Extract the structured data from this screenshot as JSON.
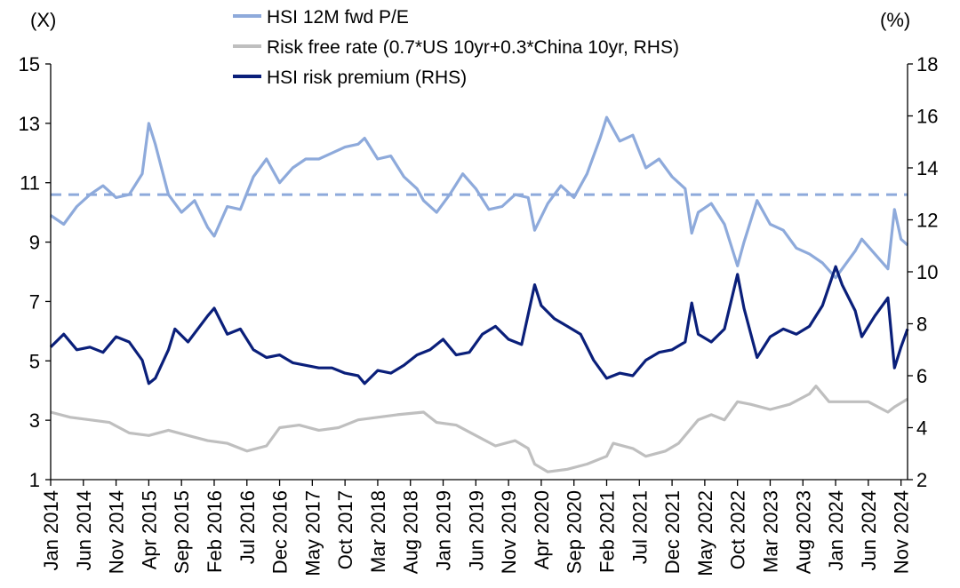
{
  "chart_data": {
    "type": "line",
    "left_unit": "(X)",
    "right_unit": "(%)",
    "left_axis": {
      "min": 1,
      "max": 15,
      "ticks": [
        1,
        3,
        5,
        7,
        9,
        11,
        13,
        15
      ]
    },
    "right_axis": {
      "min": 2,
      "max": 18,
      "ticks": [
        2,
        4,
        6,
        8,
        10,
        12,
        14,
        16,
        18
      ]
    },
    "x_range": [
      "Jan 2014",
      "Dec 2024"
    ],
    "x_tick_labels": [
      "Jan 2014",
      "Jun 2014",
      "Nov 2014",
      "Apr 2015",
      "Sep 2015",
      "Feb 2016",
      "Jul 2016",
      "Dec 2016",
      "May 2017",
      "Oct 2017",
      "Mar 2018",
      "Aug 2018",
      "Jan 2019",
      "Jun 2019",
      "Nov 2019",
      "Apr 2020",
      "Sep 2020",
      "Feb 2021",
      "Jul 2021",
      "Dec 2021",
      "May 2022",
      "Oct 2022",
      "Mar 2023",
      "Aug 2023",
      "Jan 2024",
      "Jun 2024",
      "Nov 2024"
    ],
    "grid": false,
    "legend_position": "top",
    "series": [
      {
        "name": "HSI 12M fwd P/E",
        "axis": "left",
        "color": "#8eaadb",
        "points": [
          [
            "2014-01",
            9.9
          ],
          [
            "2014-03",
            9.6
          ],
          [
            "2014-05",
            10.2
          ],
          [
            "2014-07",
            10.6
          ],
          [
            "2014-09",
            10.9
          ],
          [
            "2014-11",
            10.5
          ],
          [
            "2015-01",
            10.6
          ],
          [
            "2015-03",
            11.3
          ],
          [
            "2015-04",
            13.0
          ],
          [
            "2015-05",
            12.3
          ],
          [
            "2015-07",
            10.6
          ],
          [
            "2015-09",
            10.0
          ],
          [
            "2015-11",
            10.4
          ],
          [
            "2016-01",
            9.5
          ],
          [
            "2016-02",
            9.2
          ],
          [
            "2016-04",
            10.2
          ],
          [
            "2016-06",
            10.1
          ],
          [
            "2016-08",
            11.2
          ],
          [
            "2016-10",
            11.8
          ],
          [
            "2016-12",
            11.0
          ],
          [
            "2017-02",
            11.5
          ],
          [
            "2017-04",
            11.8
          ],
          [
            "2017-06",
            11.8
          ],
          [
            "2017-08",
            12.0
          ],
          [
            "2017-10",
            12.2
          ],
          [
            "2017-12",
            12.3
          ],
          [
            "2018-01",
            12.5
          ],
          [
            "2018-03",
            11.8
          ],
          [
            "2018-05",
            11.9
          ],
          [
            "2018-07",
            11.2
          ],
          [
            "2018-09",
            10.8
          ],
          [
            "2018-10",
            10.4
          ],
          [
            "2018-12",
            10.0
          ],
          [
            "2019-02",
            10.6
          ],
          [
            "2019-04",
            11.3
          ],
          [
            "2019-06",
            10.8
          ],
          [
            "2019-08",
            10.1
          ],
          [
            "2019-10",
            10.2
          ],
          [
            "2019-12",
            10.6
          ],
          [
            "2020-02",
            10.5
          ],
          [
            "2020-03",
            9.4
          ],
          [
            "2020-05",
            10.3
          ],
          [
            "2020-07",
            10.9
          ],
          [
            "2020-09",
            10.5
          ],
          [
            "2020-11",
            11.3
          ],
          [
            "2021-01",
            12.5
          ],
          [
            "2021-02",
            13.2
          ],
          [
            "2021-04",
            12.4
          ],
          [
            "2021-06",
            12.6
          ],
          [
            "2021-08",
            11.5
          ],
          [
            "2021-10",
            11.8
          ],
          [
            "2021-12",
            11.2
          ],
          [
            "2022-02",
            10.8
          ],
          [
            "2022-03",
            9.3
          ],
          [
            "2022-04",
            10.0
          ],
          [
            "2022-06",
            10.3
          ],
          [
            "2022-08",
            9.6
          ],
          [
            "2022-10",
            8.2
          ],
          [
            "2022-11",
            9.0
          ],
          [
            "2023-01",
            10.4
          ],
          [
            "2023-03",
            9.6
          ],
          [
            "2023-05",
            9.4
          ],
          [
            "2023-07",
            8.8
          ],
          [
            "2023-09",
            8.6
          ],
          [
            "2023-11",
            8.3
          ],
          [
            "2024-01",
            7.8
          ],
          [
            "2024-02",
            8.1
          ],
          [
            "2024-04",
            8.7
          ],
          [
            "2024-05",
            9.1
          ],
          [
            "2024-07",
            8.6
          ],
          [
            "2024-09",
            8.1
          ],
          [
            "2024-10",
            10.1
          ],
          [
            "2024-11",
            9.1
          ],
          [
            "2024-12",
            8.9
          ]
        ]
      },
      {
        "name": "Risk free rate (0.7*US 10yr+0.3*China 10yr, RHS)",
        "axis": "right",
        "color": "#bfbfbf",
        "points": [
          [
            "2014-01",
            4.6
          ],
          [
            "2014-04",
            4.4
          ],
          [
            "2014-07",
            4.3
          ],
          [
            "2014-10",
            4.2
          ],
          [
            "2015-01",
            3.8
          ],
          [
            "2015-04",
            3.7
          ],
          [
            "2015-07",
            3.9
          ],
          [
            "2015-10",
            3.7
          ],
          [
            "2016-01",
            3.5
          ],
          [
            "2016-04",
            3.4
          ],
          [
            "2016-07",
            3.1
          ],
          [
            "2016-10",
            3.3
          ],
          [
            "2016-12",
            4.0
          ],
          [
            "2017-03",
            4.1
          ],
          [
            "2017-06",
            3.9
          ],
          [
            "2017-09",
            4.0
          ],
          [
            "2017-12",
            4.3
          ],
          [
            "2018-03",
            4.4
          ],
          [
            "2018-06",
            4.5
          ],
          [
            "2018-10",
            4.6
          ],
          [
            "2018-12",
            4.2
          ],
          [
            "2019-03",
            4.1
          ],
          [
            "2019-06",
            3.7
          ],
          [
            "2019-09",
            3.3
          ],
          [
            "2019-12",
            3.5
          ],
          [
            "2020-02",
            3.2
          ],
          [
            "2020-03",
            2.6
          ],
          [
            "2020-05",
            2.3
          ],
          [
            "2020-08",
            2.4
          ],
          [
            "2020-11",
            2.6
          ],
          [
            "2021-02",
            2.9
          ],
          [
            "2021-03",
            3.4
          ],
          [
            "2021-06",
            3.2
          ],
          [
            "2021-08",
            2.9
          ],
          [
            "2021-11",
            3.1
          ],
          [
            "2022-01",
            3.4
          ],
          [
            "2022-04",
            4.3
          ],
          [
            "2022-06",
            4.5
          ],
          [
            "2022-08",
            4.3
          ],
          [
            "2022-10",
            5.0
          ],
          [
            "2022-12",
            4.9
          ],
          [
            "2023-03",
            4.7
          ],
          [
            "2023-06",
            4.9
          ],
          [
            "2023-09",
            5.3
          ],
          [
            "2023-10",
            5.6
          ],
          [
            "2023-12",
            5.0
          ],
          [
            "2024-03",
            5.0
          ],
          [
            "2024-06",
            5.0
          ],
          [
            "2024-09",
            4.6
          ],
          [
            "2024-10",
            4.8
          ],
          [
            "2024-12",
            5.1
          ]
        ]
      },
      {
        "name": "HSI risk premium (RHS)",
        "axis": "right",
        "color": "#0a1f7a",
        "points": [
          [
            "2014-01",
            7.1
          ],
          [
            "2014-03",
            7.6
          ],
          [
            "2014-05",
            7.0
          ],
          [
            "2014-07",
            7.1
          ],
          [
            "2014-09",
            6.9
          ],
          [
            "2014-11",
            7.5
          ],
          [
            "2015-01",
            7.3
          ],
          [
            "2015-03",
            6.6
          ],
          [
            "2015-04",
            5.7
          ],
          [
            "2015-05",
            5.9
          ],
          [
            "2015-07",
            7.0
          ],
          [
            "2015-08",
            7.8
          ],
          [
            "2015-10",
            7.3
          ],
          [
            "2016-01",
            8.3
          ],
          [
            "2016-02",
            8.6
          ],
          [
            "2016-04",
            7.6
          ],
          [
            "2016-06",
            7.8
          ],
          [
            "2016-08",
            7.0
          ],
          [
            "2016-10",
            6.7
          ],
          [
            "2016-12",
            6.8
          ],
          [
            "2017-02",
            6.5
          ],
          [
            "2017-04",
            6.4
          ],
          [
            "2017-06",
            6.3
          ],
          [
            "2017-08",
            6.3
          ],
          [
            "2017-10",
            6.1
          ],
          [
            "2017-12",
            6.0
          ],
          [
            "2018-01",
            5.7
          ],
          [
            "2018-03",
            6.2
          ],
          [
            "2018-05",
            6.1
          ],
          [
            "2018-07",
            6.4
          ],
          [
            "2018-09",
            6.8
          ],
          [
            "2018-11",
            7.0
          ],
          [
            "2019-01",
            7.4
          ],
          [
            "2019-03",
            6.8
          ],
          [
            "2019-05",
            6.9
          ],
          [
            "2019-07",
            7.6
          ],
          [
            "2019-09",
            7.9
          ],
          [
            "2019-11",
            7.4
          ],
          [
            "2020-01",
            7.2
          ],
          [
            "2020-03",
            9.5
          ],
          [
            "2020-04",
            8.7
          ],
          [
            "2020-06",
            8.2
          ],
          [
            "2020-08",
            7.9
          ],
          [
            "2020-10",
            7.6
          ],
          [
            "2020-12",
            6.6
          ],
          [
            "2021-02",
            5.9
          ],
          [
            "2021-04",
            6.1
          ],
          [
            "2021-06",
            6.0
          ],
          [
            "2021-08",
            6.6
          ],
          [
            "2021-10",
            6.9
          ],
          [
            "2021-12",
            7.0
          ],
          [
            "2022-02",
            7.3
          ],
          [
            "2022-03",
            8.8
          ],
          [
            "2022-04",
            7.6
          ],
          [
            "2022-06",
            7.3
          ],
          [
            "2022-08",
            7.8
          ],
          [
            "2022-10",
            9.9
          ],
          [
            "2022-11",
            8.6
          ],
          [
            "2023-01",
            6.7
          ],
          [
            "2023-03",
            7.5
          ],
          [
            "2023-05",
            7.8
          ],
          [
            "2023-07",
            7.6
          ],
          [
            "2023-09",
            7.9
          ],
          [
            "2023-11",
            8.7
          ],
          [
            "2024-01",
            10.2
          ],
          [
            "2024-02",
            9.5
          ],
          [
            "2024-04",
            8.5
          ],
          [
            "2024-05",
            7.5
          ],
          [
            "2024-07",
            8.3
          ],
          [
            "2024-09",
            9.0
          ],
          [
            "2024-10",
            6.3
          ],
          [
            "2024-11",
            7.1
          ],
          [
            "2024-12",
            7.8
          ]
        ]
      }
    ],
    "reference_lines": [
      {
        "axis": "left",
        "value": 10.6,
        "color": "#8eaadb",
        "style": "dashed"
      }
    ]
  }
}
